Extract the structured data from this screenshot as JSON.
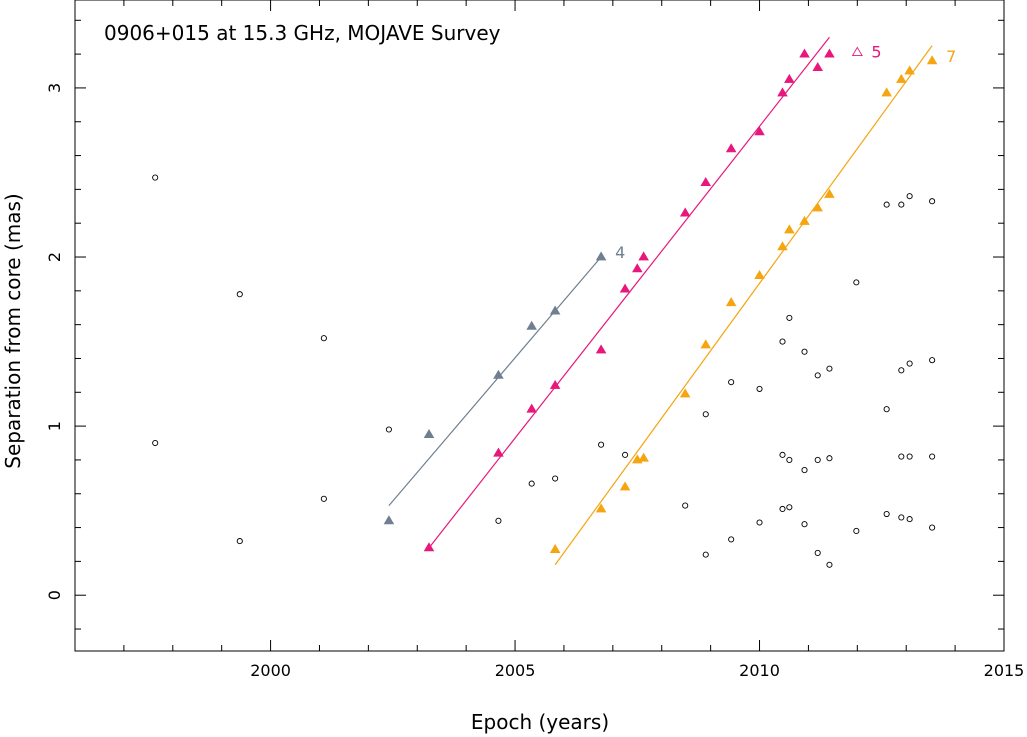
{
  "chart_data": {
    "type": "scatter",
    "title": "0906+015 at 15.3 GHz, MOJAVE Survey",
    "xlabel": "Epoch (years)",
    "ylabel": "Separation from core (mas)",
    "xlim": [
      1996.0,
      2015.0
    ],
    "ylim": [
      -0.33,
      3.52
    ],
    "xticks": [
      2000,
      2005,
      2010,
      2015
    ],
    "xtick_labels": [
      "2000",
      "2005",
      "2010",
      "2015"
    ],
    "yticks": [
      0,
      1,
      2,
      3
    ],
    "ytick_labels": [
      "0",
      "1",
      "2",
      "3"
    ],
    "grid": false,
    "series": [
      {
        "name": "4",
        "color": "#6f7f8f",
        "marker": "filled-triangle",
        "x": [
          2002.42,
          2003.24,
          2004.66,
          2005.34,
          2005.82,
          2006.76
        ],
        "y": [
          0.44,
          0.95,
          1.3,
          1.59,
          1.68,
          2.0
        ],
        "fit": {
          "x": [
            2002.42,
            2006.76
          ],
          "y": [
            0.53,
            2.0
          ]
        }
      },
      {
        "name": "5",
        "color": "#e8177c",
        "marker": "filled-triangle",
        "x": [
          2003.24,
          2004.66,
          2005.34,
          2005.82,
          2006.76,
          2007.25,
          2007.5,
          2007.63,
          2008.48,
          2008.9,
          2009.42,
          2010.0,
          2010.47,
          2010.61,
          2010.92,
          2011.19,
          2011.43
        ],
        "y": [
          0.28,
          0.84,
          1.1,
          1.24,
          1.45,
          1.81,
          1.93,
          2.0,
          2.26,
          2.44,
          2.64,
          2.74,
          2.97,
          3.05,
          3.2,
          3.12,
          3.2
        ],
        "fit": {
          "x": [
            2003.24,
            2011.43
          ],
          "y": [
            0.28,
            3.3
          ]
        },
        "extra_points": [
          {
            "x": 2012.0,
            "y": 3.21,
            "marker": "open-triangle"
          }
        ]
      },
      {
        "name": "7",
        "color": "#f5a510",
        "marker": "filled-triangle",
        "x": [
          2005.82,
          2006.76,
          2007.25,
          2007.5,
          2007.63,
          2008.48,
          2008.9,
          2009.42,
          2010.0,
          2010.47,
          2010.61,
          2010.92,
          2011.19,
          2011.43,
          2012.6,
          2012.9,
          2013.07,
          2013.53
        ],
        "y": [
          0.27,
          0.51,
          0.64,
          0.8,
          0.81,
          1.19,
          1.48,
          1.73,
          1.89,
          2.06,
          2.16,
          2.21,
          2.29,
          2.37,
          2.97,
          3.05,
          3.1,
          3.16
        ],
        "fit": {
          "x": [
            2005.82,
            2013.53
          ],
          "y": [
            0.18,
            3.25
          ]
        }
      },
      {
        "name": "",
        "color": "#000000",
        "marker": "open-circle",
        "x": [
          1997.64,
          1997.64,
          1999.37,
          1999.37,
          2001.09,
          2001.09,
          2002.42,
          2004.66,
          2005.34,
          2005.82,
          2006.76,
          2007.25,
          2008.48,
          2008.9,
          2008.9,
          2009.42,
          2009.42,
          2010.0,
          2010.0,
          2010.47,
          2010.47,
          2010.47,
          2010.61,
          2010.61,
          2010.61,
          2010.92,
          2010.92,
          2010.92,
          2011.19,
          2011.19,
          2011.19,
          2011.43,
          2011.43,
          2011.43,
          2011.98,
          2011.98,
          2012.6,
          2012.6,
          2012.6,
          2012.9,
          2012.9,
          2012.9,
          2012.9,
          2013.07,
          2013.07,
          2013.07,
          2013.07,
          2013.53,
          2013.53,
          2013.53,
          2013.53
        ],
        "y": [
          2.47,
          0.9,
          1.78,
          0.32,
          1.52,
          0.57,
          0.98,
          0.44,
          0.66,
          0.69,
          0.89,
          0.83,
          0.53,
          1.07,
          0.24,
          1.26,
          0.33,
          1.22,
          0.43,
          1.5,
          0.83,
          0.51,
          1.64,
          0.8,
          0.52,
          1.44,
          0.74,
          0.42,
          1.3,
          0.8,
          0.25,
          1.34,
          0.81,
          0.18,
          1.85,
          0.38,
          2.31,
          1.1,
          0.48,
          2.31,
          1.33,
          0.82,
          0.46,
          2.36,
          1.37,
          0.82,
          0.45,
          2.33,
          1.39,
          0.82,
          0.4
        ]
      }
    ]
  }
}
